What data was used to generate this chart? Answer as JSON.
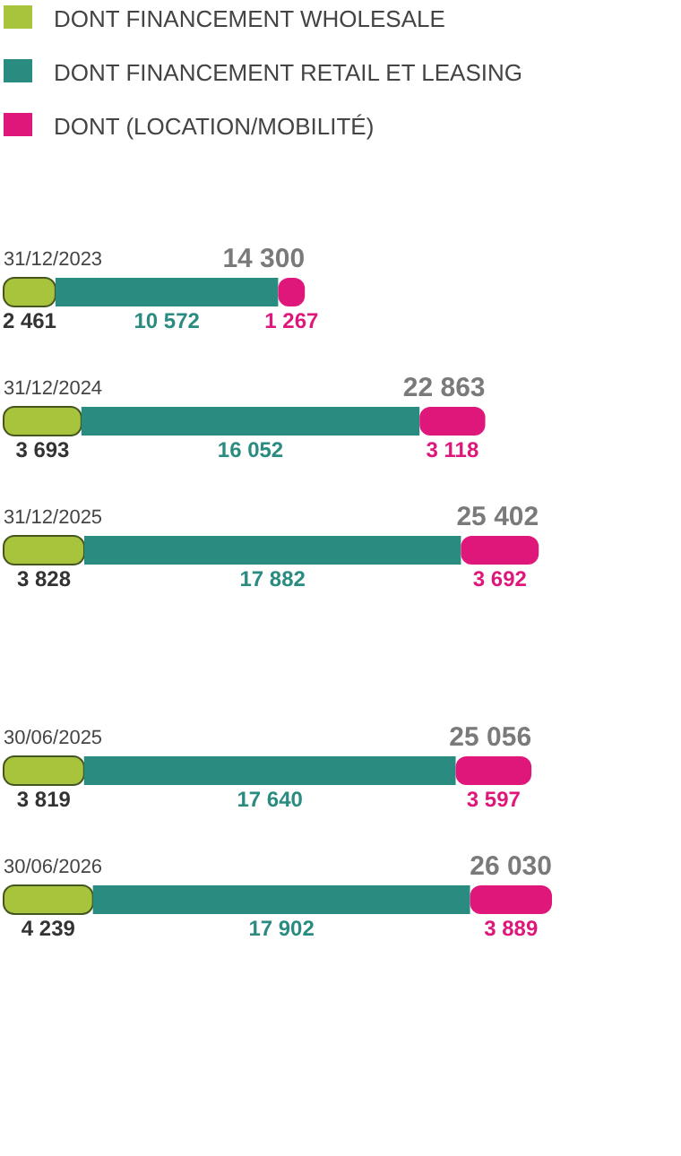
{
  "chart_data": {
    "type": "bar",
    "orientation": "horizontal",
    "stacked": true,
    "legend": "top left",
    "categories": [
      "31/12/2023",
      "31/12/2024",
      "31/12/2025",
      "30/06/2025",
      "30/06/2026"
    ],
    "series": [
      {
        "name": "DONT FINANCEMENT WHOLESALE",
        "color": "#a8c43c",
        "values": [
          2461,
          3693,
          3828,
          3819,
          4239
        ],
        "value_labels": [
          "2 461",
          "3 693",
          "3 828",
          "3 819",
          "4 239"
        ]
      },
      {
        "name": "DONT FINANCEMENT RETAIL ET LEASING",
        "color": "#2a8c80",
        "values": [
          10572,
          16052,
          17882,
          17640,
          17902
        ],
        "value_labels": [
          "10 572",
          "16 052",
          "17 882",
          "17 640",
          "17 902"
        ]
      },
      {
        "name": "DONT (LOCATION/MOBILITÉ)",
        "color": "#e0177a",
        "values": [
          1267,
          3118,
          3692,
          3597,
          3889
        ],
        "value_labels": [
          "1 267",
          "3 118",
          "3 692",
          "3 597",
          "3 889"
        ]
      }
    ],
    "totals": [
      "14 300",
      "22 863",
      "25 402",
      "25 056",
      "26 030"
    ]
  }
}
